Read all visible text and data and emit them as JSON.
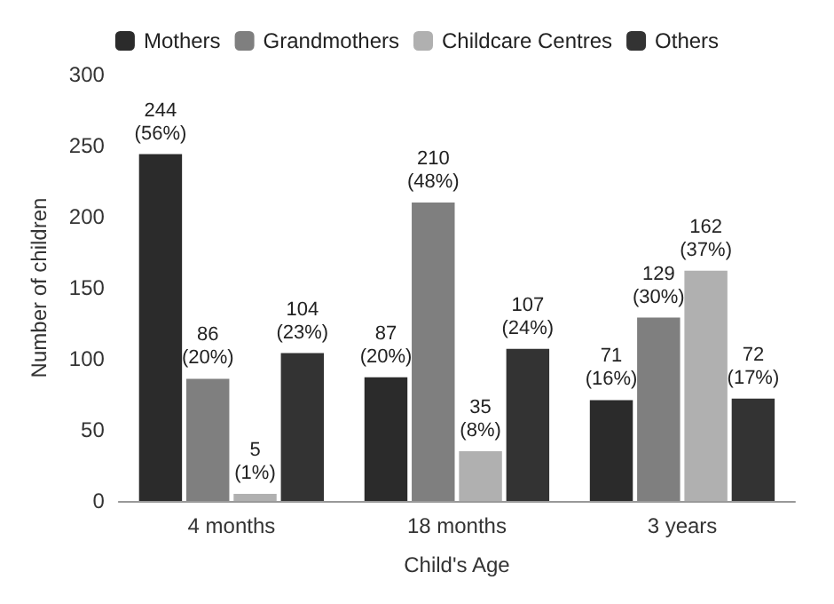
{
  "chart_data": {
    "type": "bar",
    "xlabel": "Child's Age",
    "ylabel": "Number of children",
    "categories": [
      "4 months",
      "18 months",
      "3 years"
    ],
    "series": [
      {
        "name": "Mothers",
        "color": "#2b2b2b",
        "values": [
          244,
          87,
          71
        ],
        "value_labels": [
          "244\n(56%)",
          "87\n(20%)",
          "71\n(16%)"
        ]
      },
      {
        "name": "Grandmothers",
        "color": "#7f7f7f",
        "values": [
          86,
          210,
          129
        ],
        "value_labels": [
          "86\n(20%)",
          "210\n(48%)",
          "129\n(30%)"
        ]
      },
      {
        "name": "Childcare Centres",
        "color": "#b0b0b0",
        "values": [
          5,
          35,
          162
        ],
        "value_labels": [
          "5\n(1%)",
          "35\n(8%)",
          "162\n(37%)"
        ]
      },
      {
        "name": "Others",
        "color": "#333333",
        "values": [
          104,
          107,
          72
        ],
        "value_labels": [
          "104\n(23%)",
          "107\n(24%)",
          "72\n(17%)"
        ]
      }
    ],
    "ylim": [
      0,
      300
    ],
    "yticks": [
      0,
      50,
      100,
      150,
      200,
      250,
      300
    ],
    "grid": false,
    "legend": "top"
  }
}
